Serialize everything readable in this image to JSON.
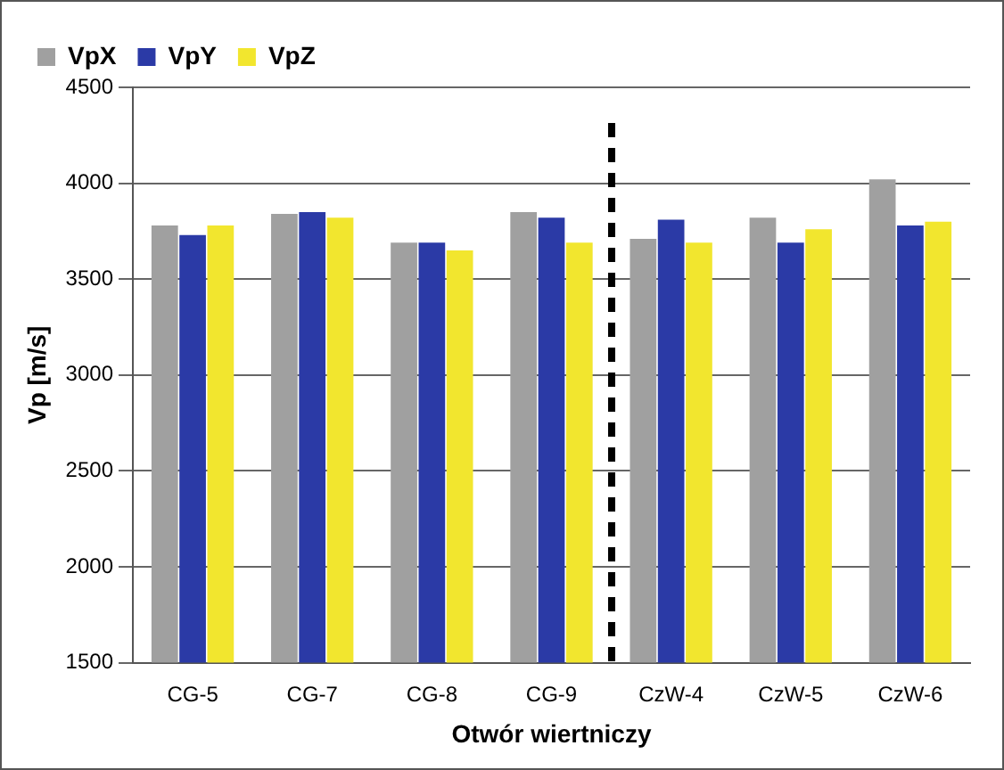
{
  "chart_data": {
    "type": "bar",
    "xlabel": "Otwór wiertniczy",
    "ylabel": "Vp [m/s]",
    "categories": [
      "CG-5",
      "CG-7",
      "CG-8",
      "CG-9",
      "CzW-4",
      "CzW-5",
      "CzW-6"
    ],
    "series": [
      {
        "name": "VpX",
        "color": "#a0a0a0",
        "values": [
          3780,
          3840,
          3690,
          3850,
          3710,
          3820,
          4020
        ]
      },
      {
        "name": "VpY",
        "color": "#2b3aa6",
        "values": [
          3730,
          3850,
          3690,
          3820,
          3810,
          3690,
          3780
        ]
      },
      {
        "name": "VpZ",
        "color": "#f2e62e",
        "values": [
          3780,
          3820,
          3650,
          3690,
          3690,
          3760,
          3800
        ]
      }
    ],
    "ylim": [
      1500,
      4500
    ],
    "yticks": [
      1500,
      2000,
      2500,
      3000,
      3500,
      4000,
      4500
    ],
    "grid": "y",
    "legend": "top left"
  }
}
